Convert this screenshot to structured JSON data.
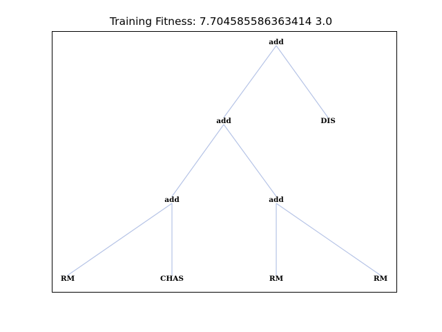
{
  "title": "Training Fitness: 7.704585586363414 3.0",
  "tree": {
    "nodes": [
      {
        "id": "n0",
        "label": "add"
      },
      {
        "id": "n1",
        "label": "add"
      },
      {
        "id": "n2",
        "label": "DIS"
      },
      {
        "id": "n3",
        "label": "add"
      },
      {
        "id": "n4",
        "label": "add"
      },
      {
        "id": "n5",
        "label": "RM"
      },
      {
        "id": "n6",
        "label": "CHAS"
      },
      {
        "id": "n7",
        "label": "RM"
      },
      {
        "id": "n8",
        "label": "RM"
      }
    ],
    "edges": [
      {
        "from": "n0",
        "to": "n1"
      },
      {
        "from": "n0",
        "to": "n2"
      },
      {
        "from": "n1",
        "to": "n3"
      },
      {
        "from": "n1",
        "to": "n4"
      },
      {
        "from": "n3",
        "to": "n5"
      },
      {
        "from": "n3",
        "to": "n6"
      },
      {
        "from": "n4",
        "to": "n7"
      },
      {
        "from": "n4",
        "to": "n8"
      }
    ]
  },
  "colors": {
    "edge": "#b5c3e6",
    "frame": "#000000",
    "text": "#000000"
  }
}
